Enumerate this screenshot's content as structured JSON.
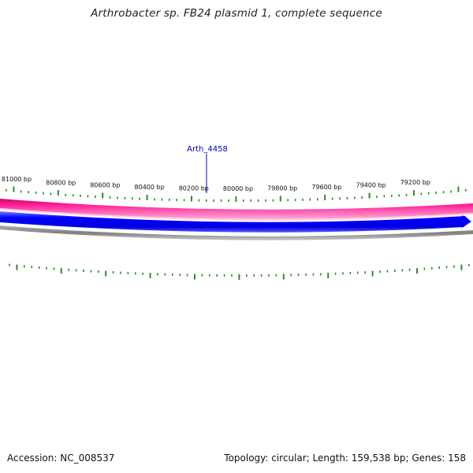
{
  "title": "Arthrobacter sp. FB24 plasmid 1, complete sequence",
  "footer": {
    "accession": "Accession: NC_008537",
    "info": "Topology: circular; Length: 159,538 bp; Genes: 158"
  },
  "ruler": {
    "labels": [
      "81000 bp",
      "80800 bp",
      "80600 bp",
      "80400 bp",
      "80200 bp",
      "80000 bp",
      "79800 bp",
      "79600 bp",
      "79400 bp",
      "79200 bp"
    ]
  },
  "gene_label": "Arth_4458",
  "colors": {
    "tick": "#2e8b2e",
    "pink_track": "#ff1493",
    "blue_track": "#0000ff",
    "gray_track": "#808080",
    "gene_label": "#0000cc"
  }
}
